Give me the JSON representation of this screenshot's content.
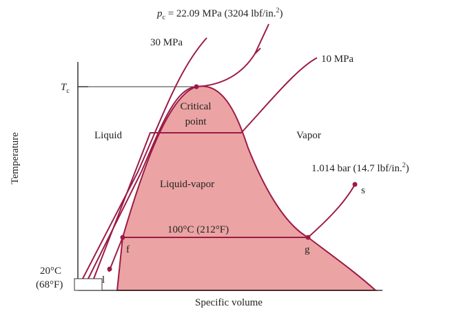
{
  "title_pc": {
    "symbol": "p",
    "sub": "c",
    "text": " = 22.09 MPa (3204 lbf/in.",
    "sup": "2",
    "end": ")"
  },
  "isobar_30": "30 MPa",
  "isobar_10": "10 MPa",
  "tc": {
    "symbol": "T",
    "sub": "c"
  },
  "critical_point": [
    "Critical",
    "point"
  ],
  "regions": {
    "liquid": "Liquid",
    "vapor": "Vapor",
    "mixture": "Liquid-vapor"
  },
  "isobar_atm": {
    "text": "1.014 bar (14.7 lbf/in.",
    "sup": "2",
    "end": ")"
  },
  "points": {
    "s": "s",
    "f": "f",
    "g": "g",
    "l": "l"
  },
  "saturation_line": "100°C (212°F)",
  "start_temp": [
    "20°C",
    "(68°F)"
  ],
  "y_axis": "Temperature",
  "x_axis": "Specific volume"
}
